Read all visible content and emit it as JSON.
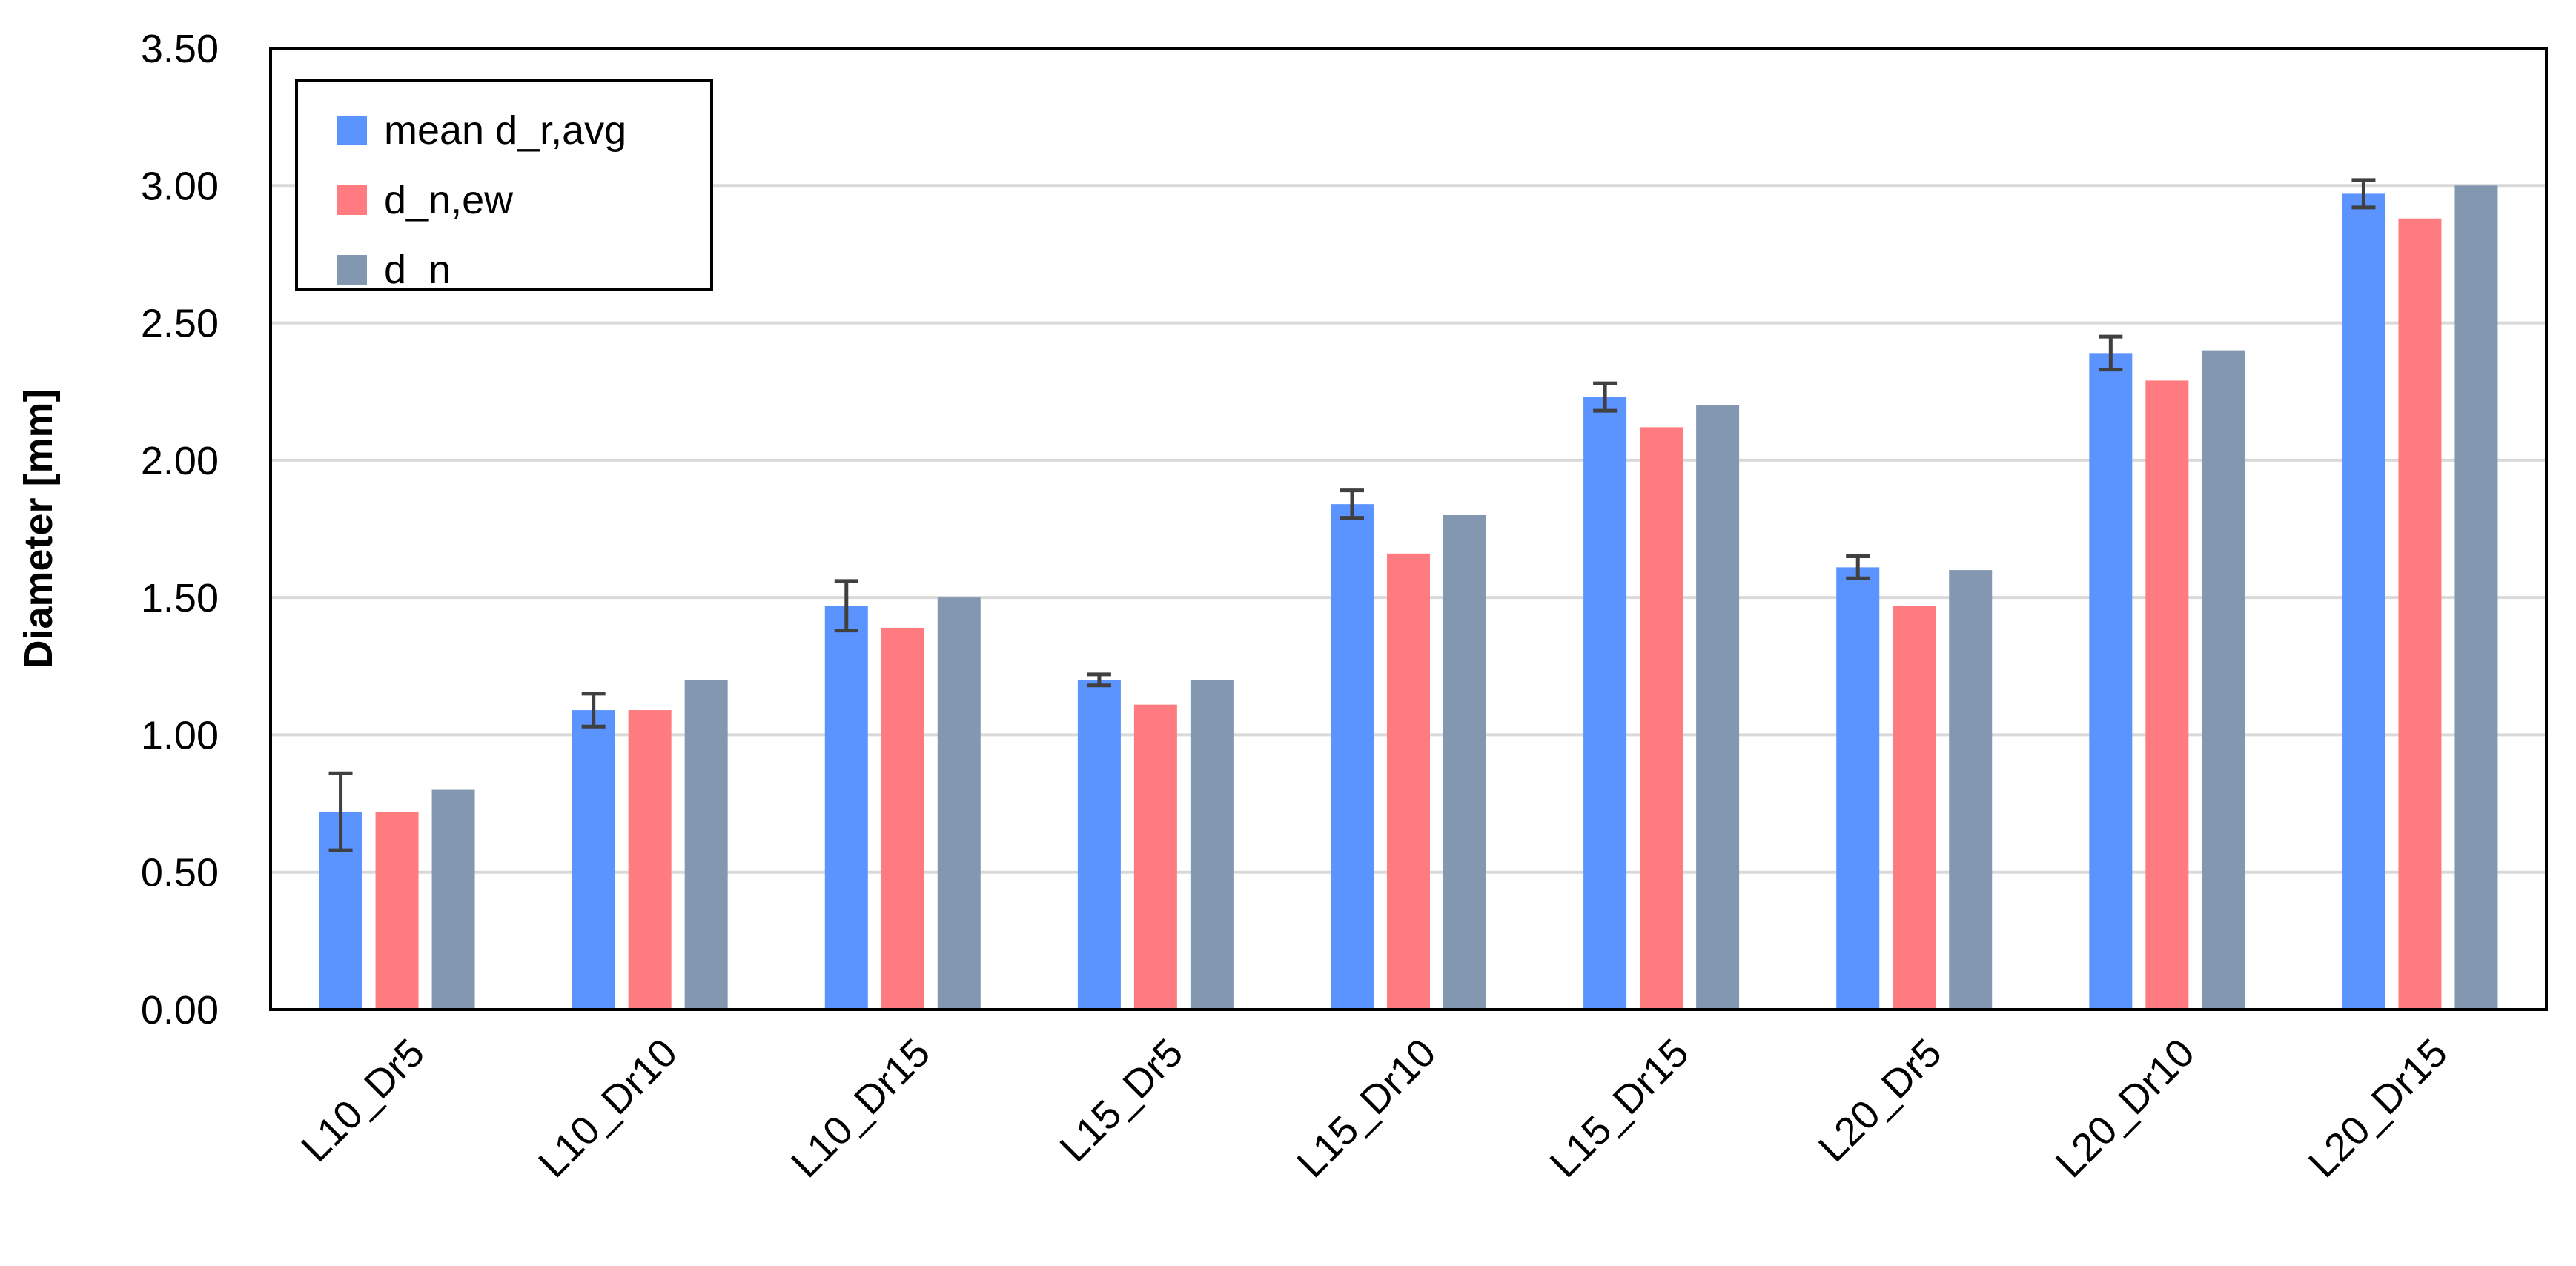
{
  "chart_data": {
    "type": "bar",
    "title": "",
    "xlabel": "",
    "ylabel": "Diameter [mm]",
    "ylim": [
      0,
      3.5
    ],
    "ytick_step": 0.5,
    "ytick_labels": [
      "0.00",
      "0.50",
      "1.00",
      "1.50",
      "2.00",
      "2.50",
      "3.00",
      "3.50"
    ],
    "grid": "horizontal",
    "legend_position": "top-left",
    "categories": [
      "L10_Dr5",
      "L10_Dr10",
      "L10_Dr15",
      "L15_Dr5",
      "L15_Dr10",
      "L15_Dr15",
      "L20_Dr5",
      "L20_Dr10",
      "L20_Dr15"
    ],
    "series": [
      {
        "name": "mean d_r,avg",
        "color": "#5B93FF",
        "values": [
          0.72,
          1.09,
          1.47,
          1.2,
          1.84,
          2.23,
          1.61,
          2.39,
          2.97
        ],
        "error": [
          0.14,
          0.06,
          0.09,
          0.02,
          0.05,
          0.05,
          0.04,
          0.06,
          0.05
        ]
      },
      {
        "name": "d_n,ew",
        "color": "#FF7B7F",
        "values": [
          0.72,
          1.09,
          1.39,
          1.11,
          1.66,
          2.12,
          1.47,
          2.29,
          2.88
        ]
      },
      {
        "name": "d_n",
        "color": "#8497B0",
        "values": [
          0.8,
          1.2,
          1.5,
          1.2,
          1.8,
          2.2,
          1.6,
          2.4,
          3.0
        ]
      }
    ]
  }
}
